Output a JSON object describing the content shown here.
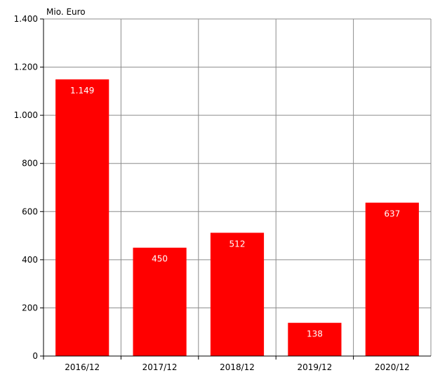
{
  "chart_data": {
    "type": "bar",
    "unit_label": "Mio. Euro",
    "categories": [
      "2016/12",
      "2017/12",
      "2018/12",
      "2019/12",
      "2020/12"
    ],
    "values": [
      1149,
      450,
      512,
      138,
      637
    ],
    "value_labels": [
      "1.149",
      "450",
      "512",
      "138",
      "637"
    ],
    "y_ticks": [
      0,
      200,
      400,
      600,
      800,
      1000,
      1200,
      1400
    ],
    "y_tick_labels": [
      "0",
      "200",
      "400",
      "600",
      "800",
      "1.000",
      "1.200",
      "1.400"
    ],
    "ylim": [
      0,
      1400
    ],
    "grid": true,
    "bar_color": "#ff0000",
    "grid_color": "#8c8c8c",
    "axis_color": "#000000",
    "label_color": "#ffffff"
  }
}
